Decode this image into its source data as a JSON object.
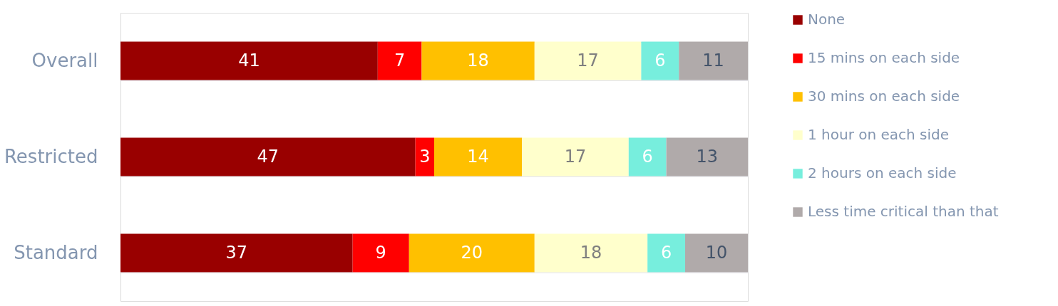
{
  "chart_data": {
    "type": "bar",
    "orientation": "horizontal",
    "stacked": true,
    "data_labels": true,
    "categories": [
      "Overall",
      "Restricted",
      "Standard"
    ],
    "series": [
      {
        "name": "None",
        "color": "#990000",
        "values": [
          41,
          47,
          37
        ]
      },
      {
        "name": "15 mins on each side",
        "color": "#ff0000",
        "values": [
          7,
          3,
          9
        ]
      },
      {
        "name": "30 mins on each side",
        "color": "#ffc000",
        "values": [
          18,
          14,
          20
        ]
      },
      {
        "name": "1 hour on each side",
        "color": "#ffffcc",
        "values": [
          17,
          17,
          18
        ]
      },
      {
        "name": "2 hours on each side",
        "color": "#77eedd",
        "values": [
          6,
          6,
          6
        ]
      },
      {
        "name": "Less time critical than that",
        "color": "#b0aaaa",
        "values": [
          11,
          13,
          10
        ]
      }
    ],
    "xlim": [
      0,
      100
    ],
    "tick_labels": "y",
    "grid": "y",
    "legend": "right"
  }
}
